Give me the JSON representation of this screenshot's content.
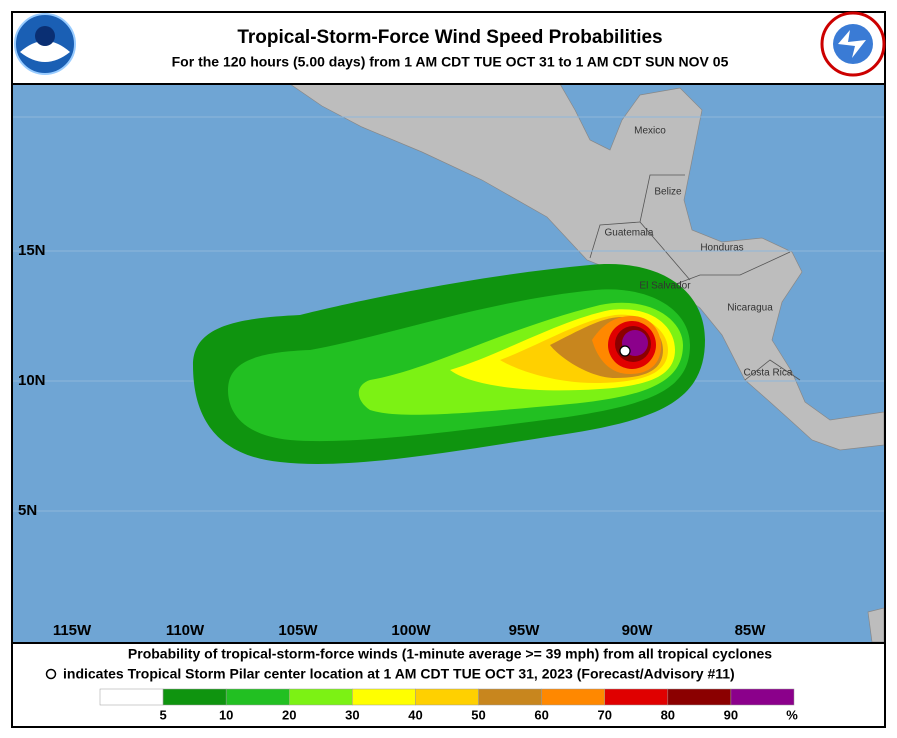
{
  "header": {
    "title": "Tropical-Storm-Force Wind Speed Probabilities",
    "subtitle": "For the 120 hours (5.00 days) from 1 AM CDT TUE OCT 31 to 1 AM CDT SUN NOV 05"
  },
  "map": {
    "lat_labels": [
      "15N",
      "10N",
      "5N"
    ],
    "lon_labels": [
      "115W",
      "110W",
      "105W",
      "100W",
      "95W",
      "90W",
      "85W"
    ],
    "place_labels": [
      "Mexico",
      "Belize",
      "Guatemala",
      "Honduras",
      "El Salvador",
      "Nicaragua",
      "Costa Rica"
    ]
  },
  "footer": {
    "line1": "Probability of tropical-storm-force winds (1-minute average >= 39 mph) from all tropical cyclones",
    "line2": "indicates Tropical Storm Pilar center location at 1 AM CDT TUE OCT 31, 2023 (Forecast/Advisory #11)"
  },
  "legend": {
    "labels": [
      5,
      10,
      20,
      30,
      40,
      50,
      60,
      70,
      80,
      90
    ],
    "unit": "%",
    "colors": [
      "#ffffff",
      "#0f940f",
      "#22c022",
      "#7cf214",
      "#ffff00",
      "#ffd000",
      "#c8861e",
      "#ff8800",
      "#e00000",
      "#8b0000",
      "#8b008b"
    ]
  }
}
